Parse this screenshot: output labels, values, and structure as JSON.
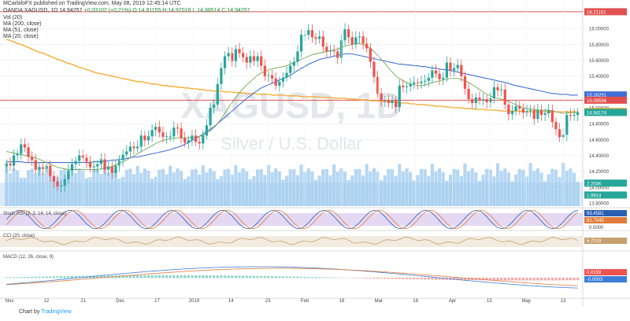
{
  "header": {
    "publisher": "MCarbiloFX published on TradingView.com, May 08, 2019 12:45:14 UTC",
    "symbol_line": "OANDA:XAGUSD, 1D",
    "open": "14.94257",
    "change": "+0.03102 (+0.21%)",
    "ohlc": "O:14.91155 H:14.97016 L:14.88514 C:14.94257"
  },
  "legend": [
    {
      "label": "Vol (20)"
    },
    {
      "label": "MA (200, close)"
    },
    {
      "label": "MA (51, close)"
    },
    {
      "label": "MA (20, close)"
    }
  ],
  "watermark": {
    "symbol": "XAGUSD, 1D",
    "name": "Silver / U.S. Dollar"
  },
  "footer": {
    "prefix": "Chart by ",
    "brand": "TradingView"
  },
  "colors": {
    "up": "#26a69a",
    "down": "#ef5350",
    "ma200": "#f5a623",
    "ma51": "#3f6fd8",
    "ma20": "#6fa84f",
    "resistance": "#e05050",
    "volume": "#9cc9ef",
    "stoch_k": "#2b5fb4",
    "stoch_d": "#e07b39",
    "stoch_band": "#d8c8ee",
    "cci": "#c6a06e",
    "macd": "#3b7dd8",
    "signal": "#e07b39"
  },
  "chart_data": {
    "type": "candlestick",
    "symbol": "OANDA:XAGUSD",
    "interval": "1D",
    "x_ticks": [
      "Nov",
      "12",
      "21",
      "Dec",
      "17",
      "2019",
      "14",
      "23",
      "Feb",
      "18",
      "Mar",
      "18",
      "Apr",
      "15",
      "May",
      "13"
    ],
    "y_ticks": [
      "16.00000",
      "15.80000",
      "15.60000",
      "15.40000",
      "15.00000",
      "14.80000",
      "14.60000",
      "14.40000",
      "14.20000",
      "14.00000",
      "13.80000"
    ],
    "ylim": [
      13.76,
      16.3
    ],
    "price_labels": [
      {
        "value": "16.21151",
        "y": 16.21151,
        "color": "#e05050"
      },
      {
        "value": "15.16251",
        "y": 15.16251,
        "color": "#3f6fd8"
      },
      {
        "value": "15.09596",
        "y": 15.09596,
        "color": "#e05050"
      },
      {
        "value": "14.95301",
        "y": 14.95301,
        "color": "#f5a623"
      },
      {
        "value": "14.94257",
        "y": 14.94257,
        "color": "#6fa84f"
      },
      {
        "value": "14.94174",
        "y": 14.94174,
        "color": "#26a69a"
      },
      {
        "value": "2.253K",
        "y": 14.05,
        "color": "#26a69a"
      },
      {
        "value": "1.9914",
        "y": 13.9,
        "color": "#26a69a"
      }
    ],
    "horizontal_lines": [
      16.21151,
      15.09596
    ],
    "closes": [
      14.3,
      14.27,
      14.4,
      14.42,
      14.54,
      14.5,
      14.38,
      14.34,
      14.22,
      14.25,
      14.23,
      14.27,
      14.14,
      14.07,
      14.01,
      14.02,
      14.1,
      14.21,
      14.29,
      14.33,
      14.4,
      14.37,
      14.32,
      14.25,
      14.26,
      14.29,
      14.35,
      14.22,
      14.26,
      14.18,
      14.27,
      14.34,
      14.41,
      14.45,
      14.51,
      14.49,
      14.51,
      14.65,
      14.59,
      14.64,
      14.72,
      14.76,
      14.69,
      14.63,
      14.64,
      14.64,
      14.75,
      14.74,
      14.62,
      14.56,
      14.59,
      14.65,
      14.57,
      14.55,
      14.65,
      14.78,
      15.0,
      15.04,
      15.3,
      15.5,
      15.65,
      15.69,
      15.59,
      15.74,
      15.69,
      15.64,
      15.57,
      15.65,
      15.59,
      15.65,
      15.53,
      15.4,
      15.41,
      15.37,
      15.28,
      15.33,
      15.38,
      15.44,
      15.53,
      15.58,
      15.71,
      15.92,
      15.92,
      15.98,
      15.89,
      15.87,
      15.9,
      15.77,
      15.71,
      15.72,
      15.71,
      15.63,
      15.85,
      15.99,
      15.89,
      15.8,
      15.89,
      15.9,
      15.81,
      15.75,
      15.58,
      15.39,
      15.18,
      15.09,
      15.09,
      15.06,
      15.09,
      15.01,
      15.28,
      15.26,
      15.27,
      15.3,
      15.32,
      15.31,
      15.33,
      15.34,
      15.38,
      15.47,
      15.43,
      15.36,
      15.38,
      15.57,
      15.47,
      15.5,
      15.54,
      15.4,
      15.24,
      15.11,
      15.06,
      15.13,
      15.1,
      15.11,
      15.07,
      15.12,
      15.26,
      15.22,
      15.23,
      15.04,
      14.92,
      14.96,
      15.02,
      14.99,
      14.94,
      14.96,
      14.97,
      14.86,
      14.97,
      14.91,
      14.93,
      14.97,
      14.82,
      14.73,
      14.63,
      14.66,
      14.91,
      14.9,
      14.91,
      14.94257
    ],
    "ma200": [
      15.86,
      15.85,
      15.83,
      15.81,
      15.8,
      15.78,
      15.76,
      15.74,
      15.72,
      15.7,
      15.69,
      15.67,
      15.65,
      15.63,
      15.61,
      15.6,
      15.58,
      15.56,
      15.55,
      15.53,
      15.51,
      15.5,
      15.48,
      15.47,
      15.45,
      15.44,
      15.43,
      15.42,
      15.41,
      15.4,
      15.39,
      15.38,
      15.37,
      15.36,
      15.35,
      15.34,
      15.33,
      15.33,
      15.32,
      15.31,
      15.3,
      15.3,
      15.29,
      15.28,
      15.28,
      15.27,
      15.27,
      15.26,
      15.26,
      15.25,
      15.25,
      15.24,
      15.24,
      15.23,
      15.23,
      15.22,
      15.22,
      15.21,
      15.21,
      15.21,
      15.2,
      15.2,
      15.2,
      15.19,
      15.19,
      15.19,
      15.18,
      15.18,
      15.18,
      15.17,
      15.17,
      15.17,
      15.17,
      15.16,
      15.16,
      15.16,
      15.16,
      15.15,
      15.15,
      15.15,
      15.15,
      15.14,
      15.14,
      15.14,
      15.14,
      15.14,
      15.13,
      15.13,
      15.13,
      15.13,
      15.12,
      15.12,
      15.12,
      15.12,
      15.11,
      15.11,
      15.11,
      15.1,
      15.1,
      15.1,
      15.09,
      15.09,
      15.09,
      15.08,
      15.08,
      15.08,
      15.07,
      15.07,
      15.06,
      15.06,
      15.06,
      15.05,
      15.05,
      15.04,
      15.04,
      15.04,
      15.03,
      15.03,
      15.02,
      15.02,
      15.02,
      15.01,
      15.01,
      15.0,
      15.0,
      15.0,
      14.99,
      14.99,
      14.99,
      14.98,
      14.98,
      14.98,
      14.97,
      14.97,
      14.97,
      14.97,
      14.96,
      14.96,
      14.96,
      14.96,
      14.96,
      14.96,
      14.95,
      14.95,
      14.95,
      14.95,
      14.95,
      14.95,
      14.95,
      14.95,
      14.95,
      14.95,
      14.95,
      14.95,
      14.95,
      14.95,
      14.95,
      14.95
    ],
    "ma51": [
      14.32,
      14.32,
      14.32,
      14.32,
      14.32,
      14.31,
      14.31,
      14.31,
      14.31,
      14.31,
      14.31,
      14.31,
      14.31,
      14.31,
      14.31,
      14.31,
      14.31,
      14.31,
      14.31,
      14.31,
      14.31,
      14.31,
      14.31,
      14.31,
      14.32,
      14.32,
      14.32,
      14.33,
      14.33,
      14.34,
      14.34,
      14.35,
      14.35,
      14.36,
      14.37,
      14.38,
      14.38,
      14.39,
      14.4,
      14.41,
      14.42,
      14.43,
      14.44,
      14.45,
      14.46,
      14.47,
      14.49,
      14.5,
      14.52,
      14.54,
      14.56,
      14.59,
      14.61,
      14.64,
      14.67,
      14.7,
      14.73,
      14.76,
      14.8,
      14.84,
      14.88,
      14.92,
      14.96,
      15.0,
      15.04,
      15.08,
      15.12,
      15.15,
      15.19,
      15.22,
      15.25,
      15.27,
      15.29,
      15.31,
      15.33,
      15.35,
      15.37,
      15.39,
      15.41,
      15.44,
      15.47,
      15.5,
      15.52,
      15.55,
      15.57,
      15.59,
      15.61,
      15.62,
      15.63,
      15.64,
      15.65,
      15.66,
      15.67,
      15.68,
      15.68,
      15.68,
      15.67,
      15.66,
      15.65,
      15.64,
      15.63,
      15.62,
      15.61,
      15.6,
      15.59,
      15.58,
      15.57,
      15.56,
      15.55,
      15.55,
      15.54,
      15.54,
      15.53,
      15.53,
      15.52,
      15.52,
      15.51,
      15.5,
      15.5,
      15.49,
      15.48,
      15.48,
      15.47,
      15.46,
      15.45,
      15.44,
      15.43,
      15.42,
      15.41,
      15.4,
      15.39,
      15.38,
      15.37,
      15.36,
      15.35,
      15.34,
      15.33,
      15.32,
      15.31,
      15.29,
      15.28,
      15.27,
      15.26,
      15.25,
      15.24,
      15.23,
      15.22,
      15.21,
      15.2,
      15.19,
      15.18,
      15.18,
      15.17,
      15.17,
      15.17,
      15.16,
      15.16,
      15.16
    ],
    "ma20": [
      14.45,
      14.44,
      14.43,
      14.42,
      14.41,
      14.4,
      14.39,
      14.38,
      14.37,
      14.35,
      14.33,
      14.31,
      14.29,
      14.27,
      14.25,
      14.24,
      14.23,
      14.22,
      14.22,
      14.22,
      14.22,
      14.22,
      14.22,
      14.22,
      14.22,
      14.22,
      14.23,
      14.24,
      14.25,
      14.26,
      14.28,
      14.3,
      14.32,
      14.34,
      14.37,
      14.39,
      14.42,
      14.45,
      14.47,
      14.5,
      14.52,
      14.55,
      14.57,
      14.59,
      14.6,
      14.61,
      14.62,
      14.62,
      14.62,
      14.62,
      14.62,
      14.63,
      14.63,
      14.64,
      14.65,
      14.68,
      14.71,
      14.75,
      14.8,
      14.86,
      14.93,
      15.0,
      15.07,
      15.13,
      15.19,
      15.24,
      15.29,
      15.33,
      15.37,
      15.41,
      15.44,
      15.46,
      15.48,
      15.49,
      15.5,
      15.51,
      15.52,
      15.53,
      15.55,
      15.57,
      15.59,
      15.61,
      15.63,
      15.65,
      15.67,
      15.68,
      15.69,
      15.7,
      15.71,
      15.72,
      15.73,
      15.74,
      15.76,
      15.78,
      15.79,
      15.8,
      15.81,
      15.81,
      15.8,
      15.78,
      15.75,
      15.71,
      15.66,
      15.61,
      15.56,
      15.5,
      15.45,
      15.4,
      15.37,
      15.34,
      15.32,
      15.3,
      15.29,
      15.28,
      15.28,
      15.29,
      15.3,
      15.32,
      15.33,
      15.34,
      15.35,
      15.36,
      15.37,
      15.37,
      15.37,
      15.36,
      15.34,
      15.32,
      15.29,
      15.26,
      15.23,
      15.2,
      15.17,
      15.15,
      15.13,
      15.12,
      15.11,
      15.1,
      15.08,
      15.06,
      15.04,
      15.02,
      15.0,
      14.99,
      14.98,
      14.98,
      14.97,
      14.97,
      14.97,
      14.97,
      14.96,
      14.95,
      14.94,
      14.93,
      14.93,
      14.94,
      14.94,
      14.94
    ],
    "indicators": [
      {
        "name": "Stoch RSI (3, 3, 14, 14, close)",
        "y_ticks": [
          "0.0000"
        ],
        "values": [
          "93.4581",
          "81.7045"
        ]
      },
      {
        "name": "CCI (20, close)",
        "y_ticks": [],
        "values": [
          "6.7019"
        ]
      },
      {
        "name": "MACD (12, 26, close, 9)",
        "y_ticks": [],
        "values": [
          "0.0159",
          "-0.0003"
        ]
      }
    ]
  }
}
